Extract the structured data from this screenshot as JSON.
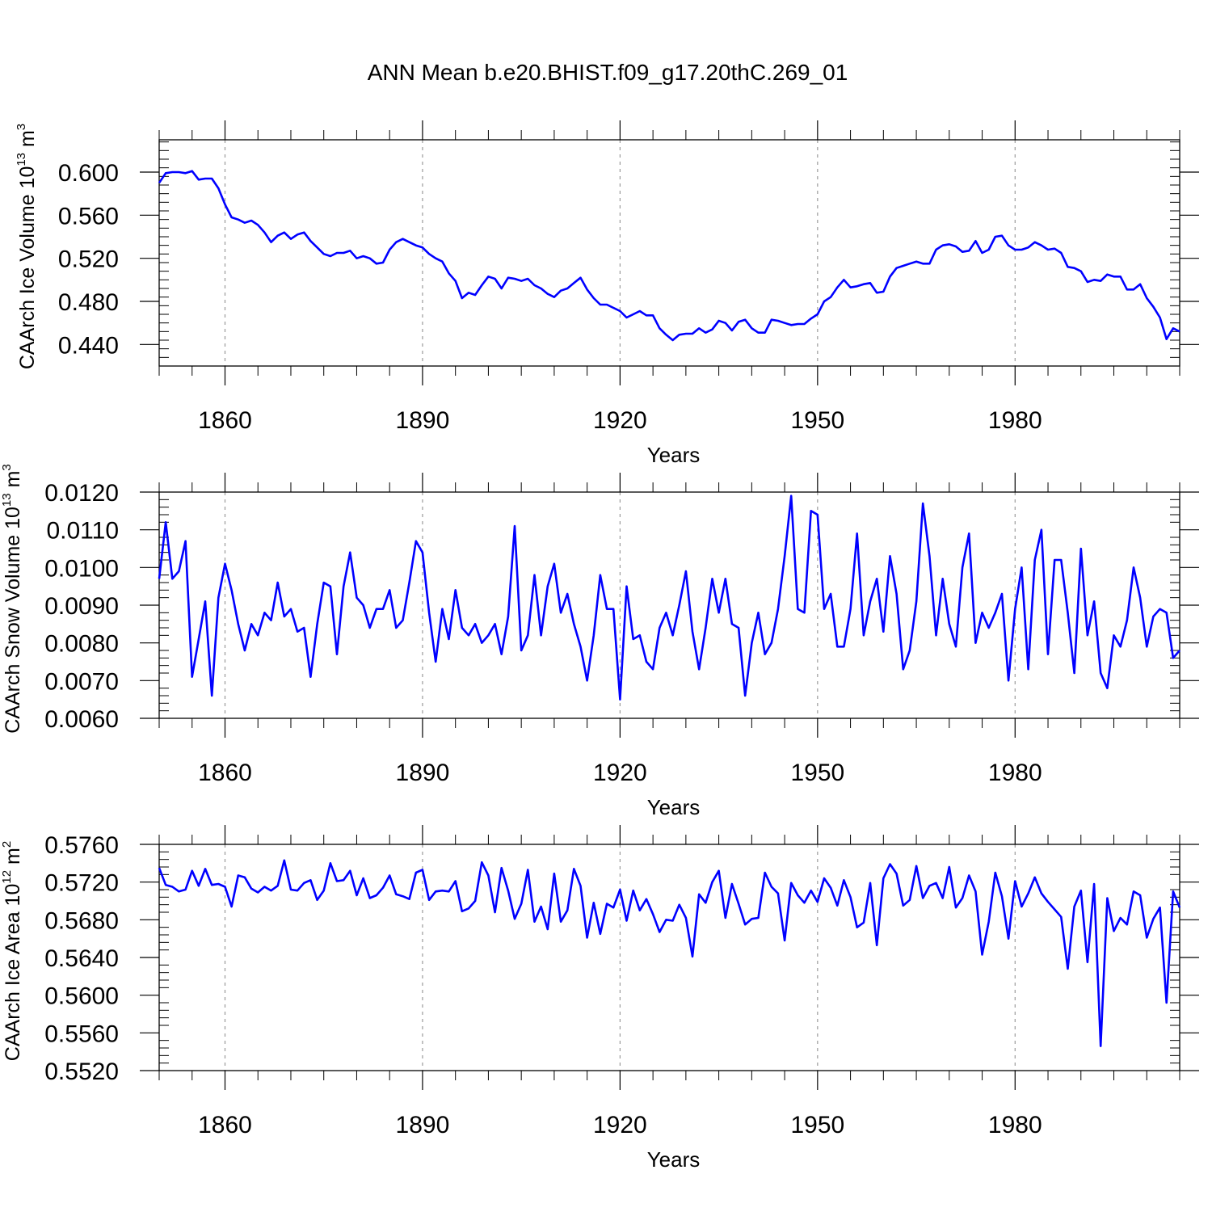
{
  "figure_title": "ANN Mean b.e20.BHIST.f09_g17.20thC.269_01",
  "colors": {
    "line": "#0000ff",
    "frame": "#000000",
    "grid": "#9a9a9a"
  },
  "chart_data": [
    {
      "type": "line",
      "ylabel": {
        "main": "CAArch Ice Volume 10",
        "exp": "13",
        "unit": " m",
        "unit_exp": "3"
      },
      "xlabel": "Years",
      "xlim": [
        1850,
        2005
      ],
      "ylim": [
        0.42,
        0.63
      ],
      "xticks": [
        1860,
        1890,
        1920,
        1950,
        1980
      ],
      "yticks": [
        0.44,
        0.48,
        0.52,
        0.56,
        0.6
      ],
      "ytick_labels": [
        "0.440",
        "0.480",
        "0.520",
        "0.560",
        "0.600"
      ],
      "grid_x": true,
      "series": [
        {
          "name": "CAArch Ice Volume",
          "x_start": 1850,
          "values": [
            0.59,
            0.599,
            0.6,
            0.6,
            0.599,
            0.601,
            0.593,
            0.594,
            0.594,
            0.585,
            0.57,
            0.558,
            0.556,
            0.553,
            0.555,
            0.551,
            0.544,
            0.535,
            0.541,
            0.544,
            0.538,
            0.542,
            0.544,
            0.536,
            0.53,
            0.524,
            0.522,
            0.525,
            0.525,
            0.527,
            0.52,
            0.522,
            0.52,
            0.515,
            0.516,
            0.528,
            0.535,
            0.538,
            0.535,
            0.532,
            0.53,
            0.524,
            0.52,
            0.517,
            0.506,
            0.499,
            0.483,
            0.488,
            0.486,
            0.495,
            0.503,
            0.501,
            0.492,
            0.502,
            0.501,
            0.499,
            0.501,
            0.495,
            0.492,
            0.487,
            0.484,
            0.49,
            0.492,
            0.497,
            0.502,
            0.491,
            0.483,
            0.477,
            0.477,
            0.474,
            0.471,
            0.465,
            0.468,
            0.471,
            0.467,
            0.467,
            0.455,
            0.449,
            0.444,
            0.449,
            0.45,
            0.45,
            0.455,
            0.451,
            0.454,
            0.462,
            0.46,
            0.453,
            0.461,
            0.463,
            0.455,
            0.451,
            0.451,
            0.463,
            0.462,
            0.46,
            0.458,
            0.459,
            0.459,
            0.464,
            0.468,
            0.48,
            0.484,
            0.493,
            0.5,
            0.493,
            0.494,
            0.496,
            0.497,
            0.488,
            0.489,
            0.503,
            0.511,
            0.513,
            0.515,
            0.517,
            0.515,
            0.515,
            0.528,
            0.532,
            0.533,
            0.531,
            0.526,
            0.527,
            0.536,
            0.525,
            0.528,
            0.54,
            0.541,
            0.532,
            0.528,
            0.528,
            0.53,
            0.535,
            0.532,
            0.528,
            0.529,
            0.525,
            0.512,
            0.511,
            0.508,
            0.498,
            0.5,
            0.499,
            0.505,
            0.503,
            0.503,
            0.491,
            0.491,
            0.496,
            0.483,
            0.475,
            0.465,
            0.445,
            0.455,
            0.452
          ]
        }
      ]
    },
    {
      "type": "line",
      "ylabel": {
        "main": "CAArch Snow Volume 10",
        "exp": "13",
        "unit": " m",
        "unit_exp": "3"
      },
      "xlabel": "Years",
      "xlim": [
        1850,
        2005
      ],
      "ylim": [
        0.006,
        0.012
      ],
      "xticks": [
        1860,
        1890,
        1920,
        1950,
        1980
      ],
      "yticks": [
        0.006,
        0.007,
        0.008,
        0.009,
        0.01,
        0.011,
        0.012
      ],
      "ytick_labels": [
        "0.0060",
        "0.0070",
        "0.0080",
        "0.0090",
        "0.0100",
        "0.0110",
        "0.0120"
      ],
      "grid_x": true,
      "series": [
        {
          "name": "CAArch Snow Volume",
          "x_start": 1850,
          "values": [
            0.0097,
            0.0112,
            0.0097,
            0.0099,
            0.0107,
            0.0071,
            0.0081,
            0.0091,
            0.0066,
            0.0092,
            0.0101,
            0.0094,
            0.0085,
            0.0078,
            0.0085,
            0.0082,
            0.0088,
            0.0086,
            0.0096,
            0.0087,
            0.0089,
            0.0083,
            0.0084,
            0.0071,
            0.0085,
            0.0096,
            0.0095,
            0.0077,
            0.0095,
            0.0104,
            0.0092,
            0.009,
            0.0084,
            0.0089,
            0.0089,
            0.0094,
            0.0084,
            0.0086,
            0.0096,
            0.0107,
            0.0104,
            0.0088,
            0.0075,
            0.0089,
            0.0081,
            0.0094,
            0.0084,
            0.0082,
            0.0085,
            0.008,
            0.0082,
            0.0085,
            0.0077,
            0.0087,
            0.0111,
            0.0078,
            0.0082,
            0.0098,
            0.0082,
            0.0095,
            0.0101,
            0.0088,
            0.0093,
            0.0085,
            0.0079,
            0.007,
            0.0082,
            0.0098,
            0.0089,
            0.0089,
            0.0065,
            0.0095,
            0.0081,
            0.0082,
            0.0075,
            0.0073,
            0.0084,
            0.0088,
            0.0082,
            0.009,
            0.0099,
            0.0083,
            0.0073,
            0.0084,
            0.0097,
            0.0088,
            0.0097,
            0.0085,
            0.0084,
            0.0066,
            0.008,
            0.0088,
            0.0077,
            0.008,
            0.0089,
            0.0103,
            0.0119,
            0.0089,
            0.0088,
            0.0115,
            0.0114,
            0.0089,
            0.0093,
            0.0079,
            0.0079,
            0.0089,
            0.0109,
            0.0082,
            0.0091,
            0.0097,
            0.0083,
            0.0103,
            0.0093,
            0.0073,
            0.0078,
            0.0091,
            0.0117,
            0.0103,
            0.0082,
            0.0097,
            0.0085,
            0.0079,
            0.01,
            0.0109,
            0.008,
            0.0088,
            0.0084,
            0.0088,
            0.0093,
            0.007,
            0.0089,
            0.01,
            0.0073,
            0.0102,
            0.011,
            0.0077,
            0.0102,
            0.0102,
            0.0088,
            0.0072,
            0.0105,
            0.0082,
            0.0091,
            0.0072,
            0.0068,
            0.0082,
            0.0079,
            0.0086,
            0.01,
            0.0092,
            0.0079,
            0.0087,
            0.0089,
            0.0088,
            0.0076,
            0.0078
          ]
        }
      ]
    },
    {
      "type": "line",
      "ylabel": {
        "main": "CAArch Ice Area 10",
        "exp": "12",
        "unit": " m",
        "unit_exp": "2"
      },
      "xlabel": "Years",
      "xlim": [
        1850,
        2005
      ],
      "ylim": [
        0.552,
        0.576
      ],
      "xticks": [
        1860,
        1890,
        1920,
        1950,
        1980
      ],
      "yticks": [
        0.552,
        0.556,
        0.56,
        0.564,
        0.568,
        0.572,
        0.576
      ],
      "ytick_labels": [
        "0.5520",
        "0.5560",
        "0.5600",
        "0.5640",
        "0.5680",
        "0.5720",
        "0.5760"
      ],
      "grid_x": true,
      "series": [
        {
          "name": "CAArch Ice Area",
          "x_start": 1850,
          "values": [
            0.5735,
            0.5717,
            0.5715,
            0.571,
            0.5712,
            0.5732,
            0.5716,
            0.5734,
            0.5717,
            0.5718,
            0.5715,
            0.5694,
            0.5727,
            0.5725,
            0.5713,
            0.5709,
            0.5715,
            0.5711,
            0.5716,
            0.5743,
            0.5712,
            0.5711,
            0.5719,
            0.5722,
            0.5701,
            0.5711,
            0.574,
            0.5721,
            0.5722,
            0.5732,
            0.5706,
            0.5724,
            0.5703,
            0.5706,
            0.5714,
            0.5727,
            0.5707,
            0.5705,
            0.5702,
            0.573,
            0.5733,
            0.5701,
            0.571,
            0.5711,
            0.571,
            0.5721,
            0.5689,
            0.5692,
            0.57,
            0.5741,
            0.5727,
            0.5688,
            0.5735,
            0.5711,
            0.5681,
            0.5697,
            0.5733,
            0.5678,
            0.5694,
            0.567,
            0.5729,
            0.5678,
            0.569,
            0.5734,
            0.5716,
            0.5661,
            0.5698,
            0.5665,
            0.5697,
            0.5693,
            0.5712,
            0.5679,
            0.5711,
            0.569,
            0.5702,
            0.5686,
            0.5667,
            0.568,
            0.5679,
            0.5696,
            0.5682,
            0.5641,
            0.5707,
            0.5698,
            0.572,
            0.5732,
            0.5682,
            0.5718,
            0.5697,
            0.5675,
            0.5681,
            0.5682,
            0.573,
            0.5715,
            0.5708,
            0.5658,
            0.5719,
            0.5706,
            0.5698,
            0.5711,
            0.5699,
            0.5724,
            0.5714,
            0.5695,
            0.5722,
            0.5704,
            0.5672,
            0.5677,
            0.5719,
            0.5653,
            0.5724,
            0.5739,
            0.5729,
            0.5695,
            0.5701,
            0.5737,
            0.5703,
            0.5716,
            0.5719,
            0.5703,
            0.5736,
            0.5693,
            0.5703,
            0.5727,
            0.571,
            0.5643,
            0.5678,
            0.573,
            0.5705,
            0.566,
            0.5721,
            0.5694,
            0.5708,
            0.5725,
            0.5708,
            0.5699,
            0.5691,
            0.5683,
            0.5628,
            0.5694,
            0.5711,
            0.5635,
            0.5718,
            0.5546,
            0.5703,
            0.5668,
            0.5682,
            0.5675,
            0.571,
            0.5706,
            0.5661,
            0.5681,
            0.5693,
            0.5592,
            0.571,
            0.5693
          ]
        }
      ]
    }
  ]
}
